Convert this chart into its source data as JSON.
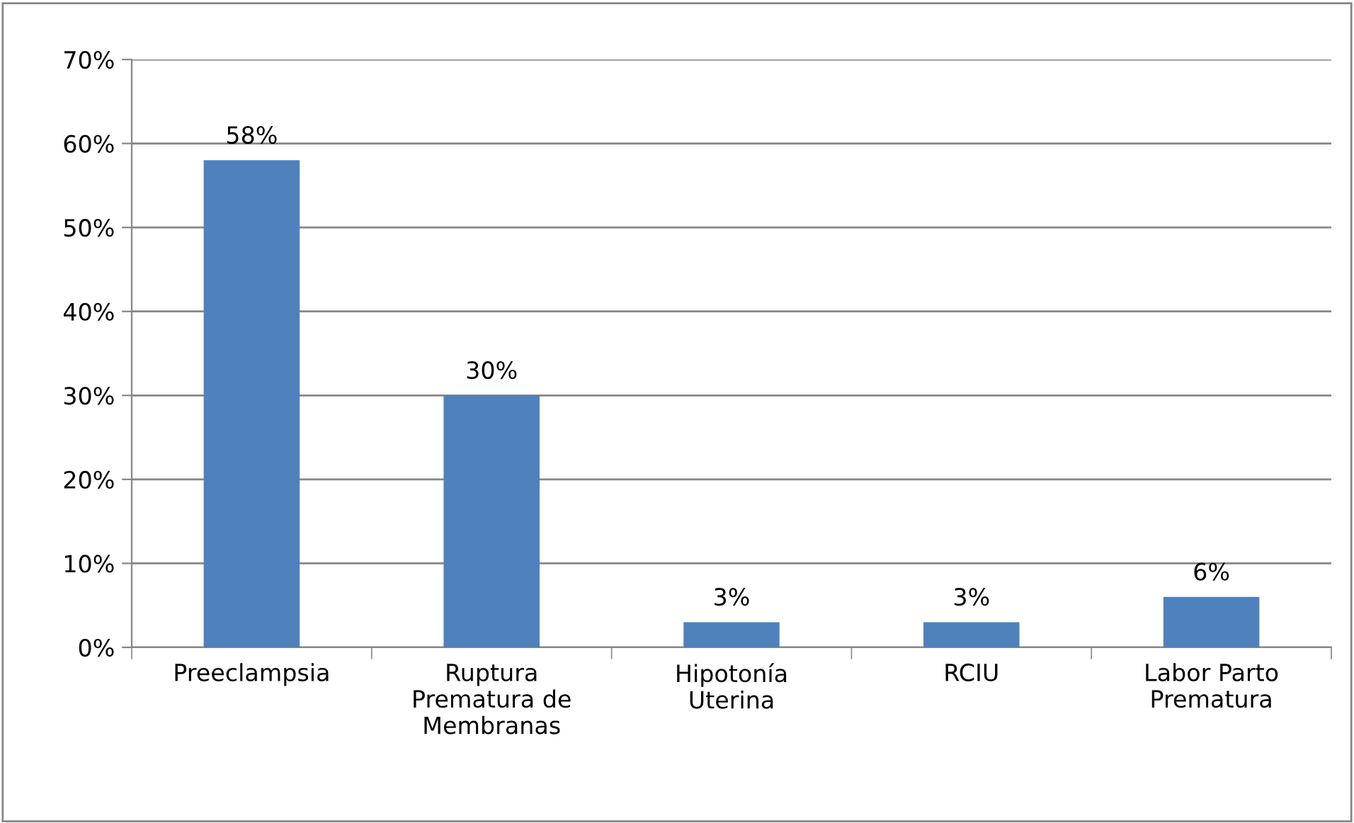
{
  "chart_data": {
    "type": "bar",
    "categories": [
      "Preeclampsia",
      "Ruptura\nPrematura de\nMembranas",
      "Hipotonía\nUterina",
      "RCIU",
      "Labor Parto\nPrematura"
    ],
    "values": [
      58,
      30,
      3,
      3,
      6
    ],
    "value_labels": [
      "58%",
      "30%",
      "3%",
      "3%",
      "6%"
    ],
    "color": "#4f81bd",
    "ylim": [
      0,
      70
    ],
    "yticks": [
      {
        "value": 0,
        "label": "0%"
      },
      {
        "value": 10,
        "label": "10%"
      },
      {
        "value": 20,
        "label": "20%"
      },
      {
        "value": 30,
        "label": "30%"
      },
      {
        "value": 40,
        "label": "40%"
      },
      {
        "value": 50,
        "label": "50%"
      },
      {
        "value": 60,
        "label": "60%"
      },
      {
        "value": 70,
        "label": "70%"
      }
    ],
    "grid": "y",
    "legend": false
  }
}
